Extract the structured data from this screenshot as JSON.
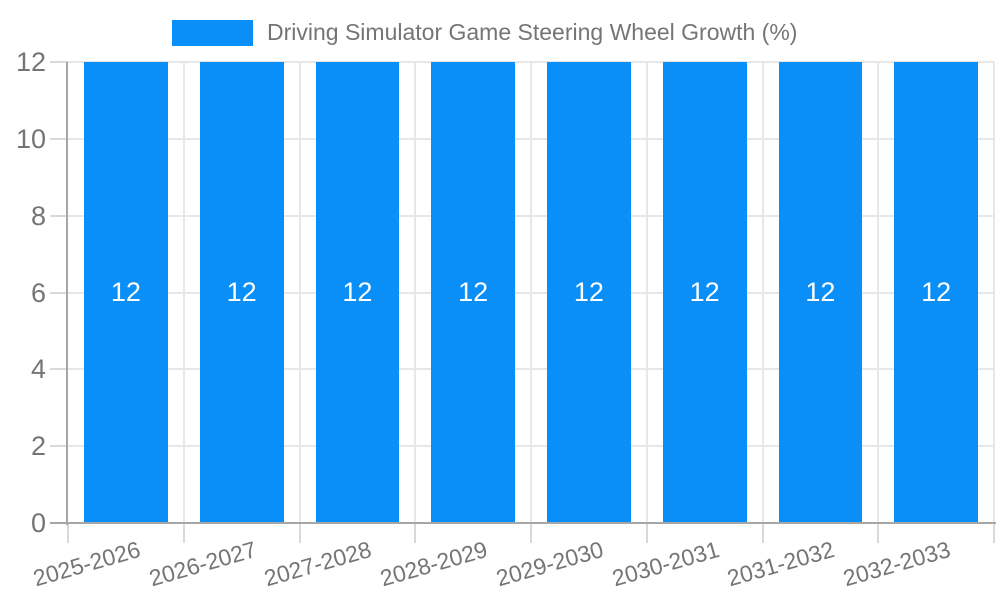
{
  "page": {
    "background": "#ffffff"
  },
  "legend": {
    "position": "top",
    "swatch_color": "#098ff7"
  },
  "chart_data": {
    "type": "bar",
    "title": "Driving Simulator Game Steering Wheel Growth (%)",
    "categories": [
      "2025-2026",
      "2026-2027",
      "2027-2028",
      "2028-2029",
      "2029-2030",
      "2030-2031",
      "2031-2032",
      "2032-2033"
    ],
    "series": [
      {
        "name": "Driving Simulator Game Steering Wheel Growth (%)",
        "values": [
          12,
          12,
          12,
          12,
          12,
          12,
          12,
          12
        ]
      }
    ],
    "bar_value_labels": [
      "12",
      "12",
      "12",
      "12",
      "12",
      "12",
      "12",
      "12"
    ],
    "xlabel": "",
    "ylabel": "",
    "ylim": [
      0,
      12
    ],
    "yticks": [
      0,
      2,
      4,
      6,
      8,
      10,
      12
    ],
    "grid": "both",
    "legend_position": "top",
    "colors": {
      "bar": "#098ff7",
      "grid": "#e7e7e7",
      "axis": "#a6a6a6",
      "tick": "#d9d9d9",
      "text": "#757575",
      "bar_label_text": "#ffffff",
      "background": "#ffffff"
    }
  }
}
